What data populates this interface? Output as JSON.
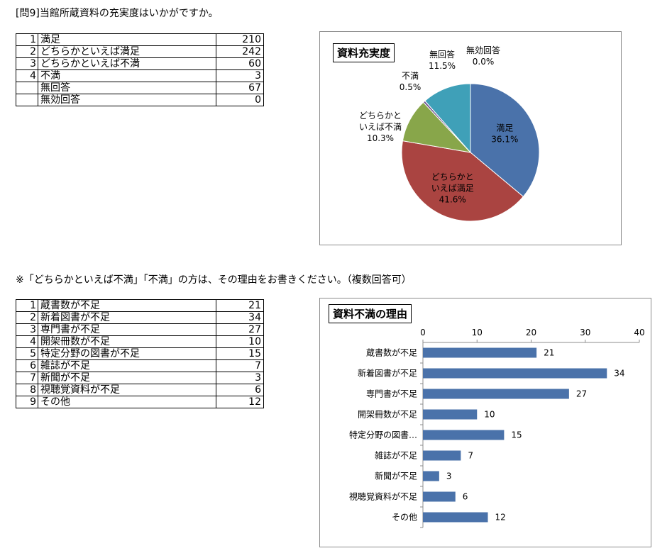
{
  "question_title": "[問9]当館所蔵資料の充実度はいかがですか。",
  "note": "※「どちらかといえば不満」「不満」の方は、その理由をお書きください。（複数回答可）",
  "table1": {
    "rows": [
      {
        "no": "1",
        "label": "満足",
        "value": "210"
      },
      {
        "no": "2",
        "label": "どちらかといえば満足",
        "value": "242"
      },
      {
        "no": "3",
        "label": "どちらかといえば不満",
        "value": "60"
      },
      {
        "no": "4",
        "label": "不満",
        "value": "3"
      },
      {
        "no": "",
        "label": "無回答",
        "value": "67"
      },
      {
        "no": "",
        "label": "無効回答",
        "value": "0"
      }
    ]
  },
  "table2": {
    "rows": [
      {
        "no": "1",
        "label": "蔵書数が不足",
        "value": "21"
      },
      {
        "no": "2",
        "label": "新着図書が不足",
        "value": "34"
      },
      {
        "no": "3",
        "label": "専門書が不足",
        "value": "27"
      },
      {
        "no": "4",
        "label": "開架冊数が不足",
        "value": "10"
      },
      {
        "no": "5",
        "label": "特定分野の図書が不足",
        "value": "15"
      },
      {
        "no": "6",
        "label": "雑誌が不足",
        "value": "7"
      },
      {
        "no": "7",
        "label": "新聞が不足",
        "value": "3"
      },
      {
        "no": "8",
        "label": "視聴覚資料が不足",
        "value": "6"
      },
      {
        "no": "9",
        "label": "その他",
        "value": "12"
      }
    ]
  },
  "chart_data": [
    {
      "type": "pie",
      "title": "資料充実度",
      "categories": [
        "満足",
        "どちらかといえば満足",
        "どちらかといえば不満",
        "不満",
        "無回答",
        "無効回答"
      ],
      "values": [
        36.1,
        41.6,
        10.3,
        0.5,
        11.5,
        0.0
      ],
      "data_labels": [
        {
          "lines": [
            "満足",
            "36.1%"
          ]
        },
        {
          "lines": [
            "どちらかと",
            "いえば満足",
            "41.6%"
          ]
        },
        {
          "lines": [
            "どちらかと",
            "いえば不満",
            "10.3%"
          ]
        },
        {
          "lines": [
            "不満",
            "0.5%"
          ]
        },
        {
          "lines": [
            "無回答",
            "11.5%"
          ]
        },
        {
          "lines": [
            "無効回答",
            "0.0%"
          ]
        }
      ],
      "colors": [
        "#4a72aa",
        "#aa4441",
        "#88a64a",
        "#6f548f",
        "#3fa0b8",
        "#e0893a"
      ]
    },
    {
      "type": "bar",
      "orientation": "horizontal",
      "title": "資料不満の理由",
      "categories": [
        "蔵書数が不足",
        "新着図書が不足",
        "専門書が不足",
        "開架冊数が不足",
        "特定分野の図書…",
        "雑誌が不足",
        "新聞が不足",
        "視聴覚資料が不足",
        "その他"
      ],
      "values": [
        21,
        34,
        27,
        10,
        15,
        7,
        3,
        6,
        12
      ],
      "xlim": [
        0,
        40
      ],
      "xticks": [
        0,
        10,
        20,
        30,
        40
      ],
      "axis_position": "top",
      "grid": false,
      "bar_color": "#4a72aa"
    }
  ]
}
